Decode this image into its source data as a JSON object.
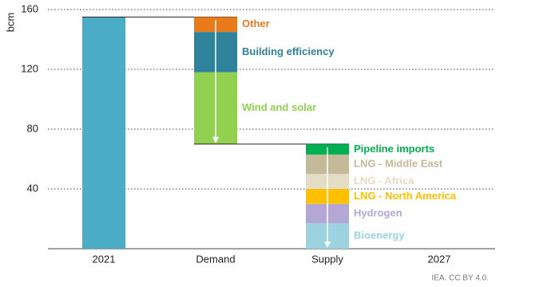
{
  "chart_data": {
    "type": "waterfall",
    "y_label": "bcm",
    "categories": [
      "2021",
      "Demand",
      "Supply",
      "2027"
    ],
    "start_value": 155,
    "start_color": "#4bacc6",
    "demand": [
      {
        "name": "Other",
        "color": "#e97b1c",
        "value": 10
      },
      {
        "name": "Building efficiency",
        "color": "#2e8299",
        "value": 27
      },
      {
        "name": "Wind and solar",
        "color": "#92d050",
        "value": 48
      }
    ],
    "supply": [
      {
        "name": "Bioenergy",
        "color": "#9dd3e0",
        "value": 17
      },
      {
        "name": "Hydrogen",
        "color": "#b4a7d6",
        "value": 13
      },
      {
        "name": "LNG - North America",
        "color": "#ffc000",
        "value": 10
      },
      {
        "name": "LNG - Africa",
        "color": "#e5dcc5",
        "value": 10
      },
      {
        "name": "LNG - Middle East",
        "color": "#c4b998",
        "value": 13
      },
      {
        "name": "Pipeline imports",
        "color": "#00b050",
        "value": 7
      }
    ],
    "ylim": [
      0,
      160
    ],
    "yticks": [
      40,
      80,
      120,
      160
    ],
    "grid": true,
    "source": "IEA. CC BY 4.0."
  }
}
